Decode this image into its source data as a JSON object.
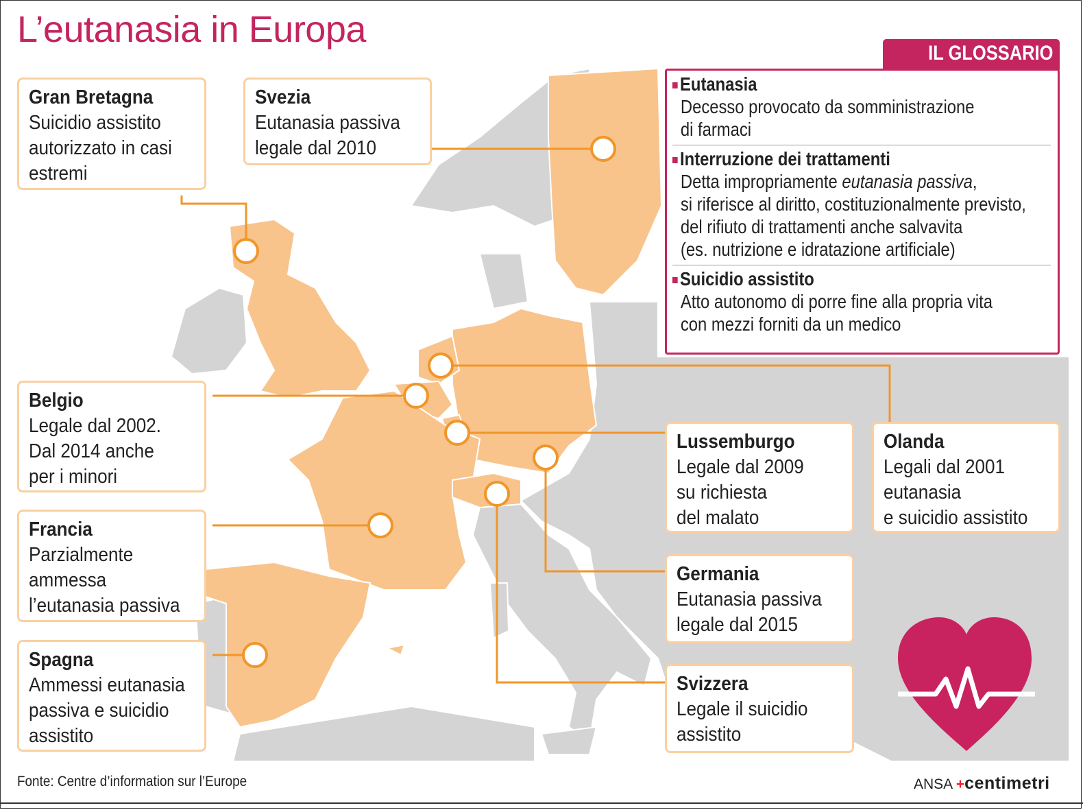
{
  "title": "L’eutanasia in Europa",
  "colors": {
    "accent": "#c4255f",
    "highlight_country": "#f8c48c",
    "other_land": "#d4d4d4",
    "connector": "#f0962a"
  },
  "countries": [
    {
      "name": "Gran Bretagna",
      "desc": "Suicidio assistito\nautorizzato in casi\nestremi"
    },
    {
      "name": "Svezia",
      "desc": "Eutanasia passiva\nlegale dal 2010"
    },
    {
      "name": "Belgio",
      "desc": "Legale dal 2002.\nDal 2014 anche\nper i minori"
    },
    {
      "name": "Francia",
      "desc": "Parzialmente\nammessa\nl’eutanasia passiva"
    },
    {
      "name": "Spagna",
      "desc": "Ammessi eutanasia\npassiva e suicidio\nassistito"
    },
    {
      "name": "Lussemburgo",
      "desc": "Legale dal 2009\nsu richiesta\ndel malato"
    },
    {
      "name": "Olanda",
      "desc": "Legali dal 2001\neutanasia\ne suicidio assistito"
    },
    {
      "name": "Germania",
      "desc": "Eutanasia passiva\nlegale dal 2015"
    },
    {
      "name": "Svizzera",
      "desc": "Legale il suicidio\nassistito"
    }
  ],
  "glossary": {
    "header": "IL GLOSSARIO",
    "items": [
      {
        "term": "Eutanasia",
        "lines": [
          "Decesso provocato da somministrazione",
          "di farmaci"
        ]
      },
      {
        "term": "Interruzione dei trattamenti",
        "lines_pre": "Detta impropriamente ",
        "lines_italic": "eutanasia passiva",
        "lines_post": ",",
        "lines": [
          "si riferisce al diritto, costituzionalmente previsto,",
          "del rifiuto di trattamenti anche salvavita",
          "(es. nutrizione e idratazione artificiale)"
        ]
      },
      {
        "term": "Suicidio assistito",
        "lines": [
          "Atto autonomo di porre fine alla propria vita",
          "con mezzi forniti da un medico"
        ]
      }
    ]
  },
  "source": "Fonte: Centre d’information sur l’Europe",
  "logo": {
    "agency": "ANSA",
    "brand": "centimetri"
  },
  "icons": [
    "heart-pulse-icon"
  ]
}
